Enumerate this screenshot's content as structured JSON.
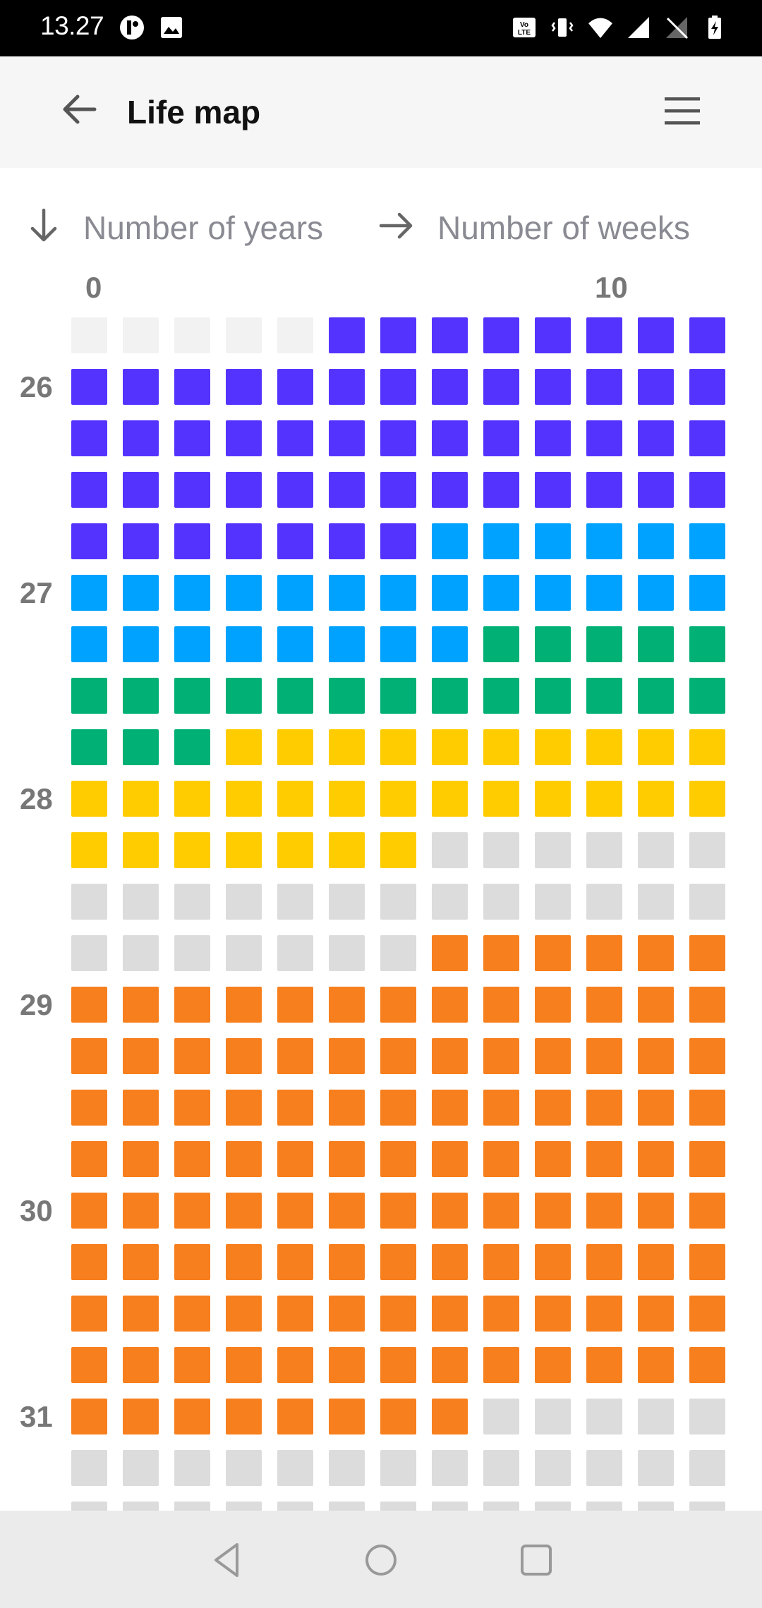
{
  "status_bar": {
    "time": "13.27",
    "left_icons": [
      "app-notification-icon",
      "image-icon"
    ],
    "right_icons": [
      "volte-icon",
      "vibrate-icon",
      "wifi-icon",
      "signal-icon",
      "no-sim-icon",
      "battery-charging-icon"
    ]
  },
  "app_bar": {
    "title": "Life map",
    "back_icon": "arrow-left-icon",
    "menu_icon": "hamburger-menu-icon"
  },
  "legend": {
    "years_label": "Number of years",
    "weeks_label": "Number of weeks",
    "years_icon": "arrow-down-icon",
    "weeks_icon": "arrow-right-icon"
  },
  "column_labels": {
    "start": "0",
    "tenth": "10"
  },
  "colors": {
    "E": "#f2f2f2",
    "G": "#dcdcdc",
    "P": "#5533ff",
    "B": "#00a2ff",
    "N": "#00b074",
    "Y": "#ffcc00",
    "O": "#f77f1e"
  },
  "grid": {
    "columns": 13,
    "rows": [
      {
        "label": "",
        "cells": "EEEEEPPPPPPPP"
      },
      {
        "label": "26",
        "cells": "PPPPPPPPPPPPP"
      },
      {
        "label": "",
        "cells": "PPPPPPPPPPPPP"
      },
      {
        "label": "",
        "cells": "PPPPPPPPPPPPP"
      },
      {
        "label": "",
        "cells": "PPPPPPPBBBBBB"
      },
      {
        "label": "27",
        "cells": "BBBBBBBBBBBBB"
      },
      {
        "label": "",
        "cells": "BBBBBBBBNNNNN"
      },
      {
        "label": "",
        "cells": "NNNNNNNNNNNNN"
      },
      {
        "label": "",
        "cells": "NNNYYYYYYYYYY"
      },
      {
        "label": "28",
        "cells": "YYYYYYYYYYYYY"
      },
      {
        "label": "",
        "cells": "YYYYYYYGGGGGG"
      },
      {
        "label": "",
        "cells": "GGGGGGGGGGGGG"
      },
      {
        "label": "",
        "cells": "GGGGGGGOOOOOO"
      },
      {
        "label": "29",
        "cells": "OOOOOOOOOOOOO"
      },
      {
        "label": "",
        "cells": "OOOOOOOOOOOOO"
      },
      {
        "label": "",
        "cells": "OOOOOOOOOOOOO"
      },
      {
        "label": "",
        "cells": "OOOOOOOOOOOOO"
      },
      {
        "label": "30",
        "cells": "OOOOOOOOOOOOO"
      },
      {
        "label": "",
        "cells": "OOOOOOOOOOOOO"
      },
      {
        "label": "",
        "cells": "OOOOOOOOOOOOO"
      },
      {
        "label": "",
        "cells": "OOOOOOOOOOOOO"
      },
      {
        "label": "31",
        "cells": "OOOOOOOOGGGGG"
      },
      {
        "label": "",
        "cells": "GGGGGGGGGGGGG"
      },
      {
        "label": "",
        "cells": "GGGGGGGGGGGGG"
      }
    ]
  },
  "nav_bar": {
    "icons": [
      "nav-back-icon",
      "nav-home-icon",
      "nav-recents-icon"
    ]
  }
}
